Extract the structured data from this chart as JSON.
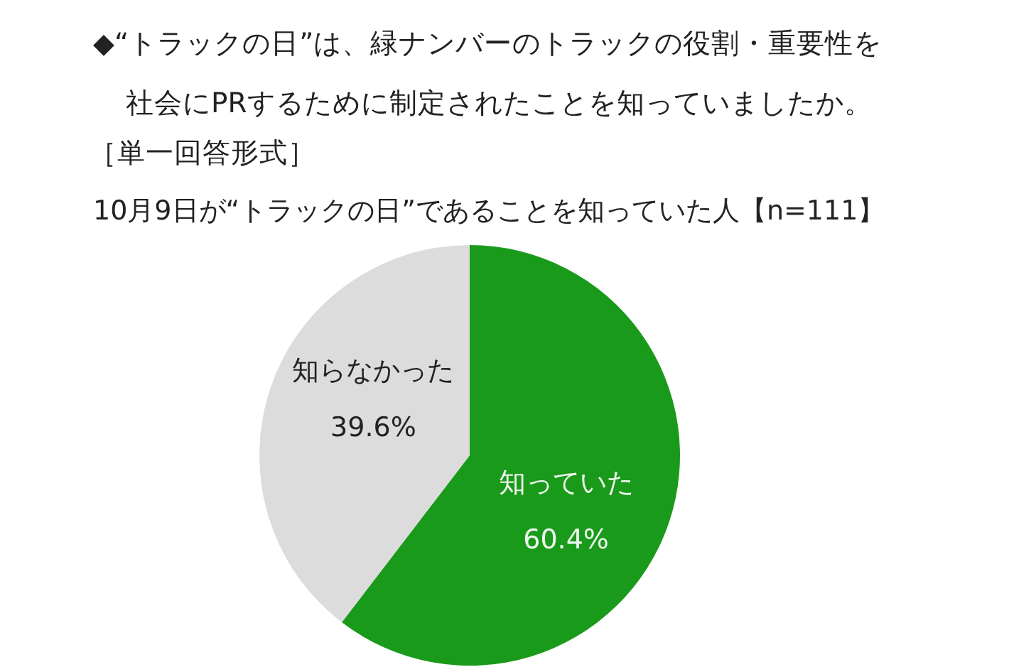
{
  "chart_data": {
    "type": "pie",
    "title": "◆“トラックの日”は、緑ナンバーのトラックの役割・重要性を社会にPRするために制定されたことを知っていましたか。",
    "subtitle": "［単一回答形式］",
    "annotations": [
      "10月9日が“トラックの日”であることを知っていた人【n=111】"
    ],
    "categories": [
      "知っていた",
      "知らなかった"
    ],
    "values": [
      60.4,
      39.6
    ],
    "colors": [
      "#1a9a1a",
      "#dcdcdc"
    ],
    "value_labels": [
      "60.4%",
      "39.6%"
    ]
  }
}
